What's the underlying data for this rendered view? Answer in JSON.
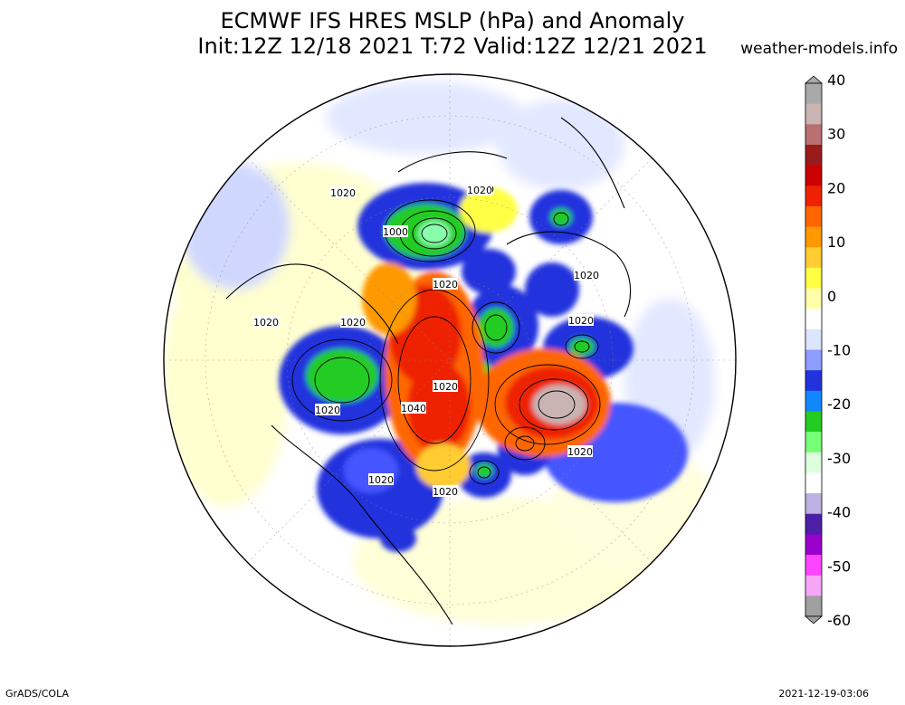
{
  "title_line1": "ECMWF IFS HRES MSLP (hPa) and Anomaly",
  "title_line2": "Init:12Z 12/18 2021 T:72 Valid:12Z 12/21 2021",
  "site": "weather-models.info",
  "footer_left": "GrADS/COLA",
  "footer_right": "2021-12-19-03:06",
  "colorbar": {
    "ticks": [
      "40",
      "30",
      "20",
      "10",
      "0",
      "-10",
      "-20",
      "-30",
      "-40",
      "-50",
      "-60"
    ],
    "colors": [
      "#a9a9a9",
      "#c9b3b3",
      "#b87070",
      "#9b1b1b",
      "#cc0000",
      "#ee2200",
      "#ff6600",
      "#ff9900",
      "#ffcc33",
      "#ffff44",
      "#ffffaa",
      "#ffffff",
      "#dde4ff",
      "#8e9dff",
      "#2233dd",
      "#1188ff",
      "#22cc22",
      "#77ff77",
      "#ddffdd",
      "#ffffff",
      "#bcb1e2",
      "#4b1fa6",
      "#9900cc",
      "#ff44ff",
      "#f7a6f7",
      "#a0a0a0"
    ]
  },
  "isobar_labels": [
    {
      "text": "1020"
    },
    {
      "text": "1020"
    },
    {
      "text": "1000"
    },
    {
      "text": "1020"
    },
    {
      "text": "1020"
    },
    {
      "text": "1020"
    },
    {
      "text": "1020"
    },
    {
      "text": "1020"
    },
    {
      "text": "1020"
    },
    {
      "text": "1040"
    },
    {
      "text": "1020"
    },
    {
      "text": "1020"
    },
    {
      "text": "1020"
    },
    {
      "text": "1020"
    },
    {
      "text": "1020"
    }
  ]
}
